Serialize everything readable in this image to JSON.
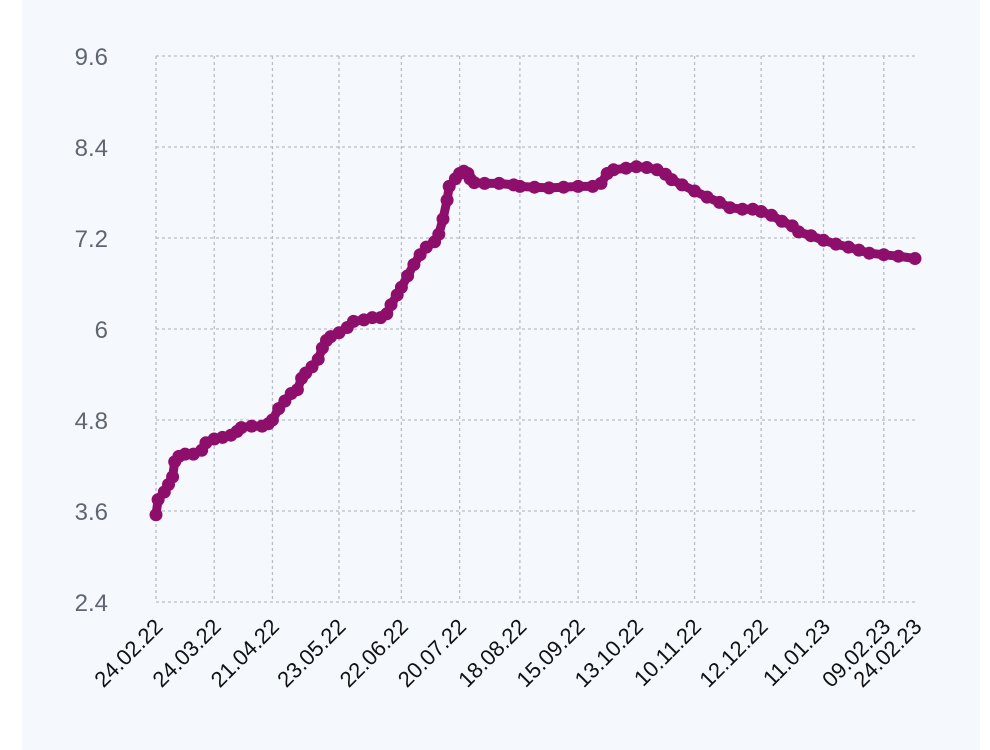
{
  "chart_data": {
    "type": "line",
    "title": "",
    "xlabel": "",
    "ylabel": "",
    "ylim": [
      2.4,
      9.6
    ],
    "y_ticks": [
      "2.4",
      "3.6",
      "4.8",
      "6",
      "7.2",
      "8.4",
      "9.6"
    ],
    "x_range": [
      "2022-02-24",
      "2023-02-24"
    ],
    "x_ticks": [
      {
        "date": "2022-02-24",
        "label": "24.02.22"
      },
      {
        "date": "2022-03-24",
        "label": "24.03.22"
      },
      {
        "date": "2022-04-21",
        "label": "21.04.22"
      },
      {
        "date": "2022-05-23",
        "label": "23.05.22"
      },
      {
        "date": "2022-06-22",
        "label": "22.06.22"
      },
      {
        "date": "2022-07-20",
        "label": "20.07.22"
      },
      {
        "date": "2022-08-18",
        "label": "18.08.22"
      },
      {
        "date": "2022-09-15",
        "label": "15.09.22"
      },
      {
        "date": "2022-10-13",
        "label": "13.10.22"
      },
      {
        "date": "2022-11-10",
        "label": "10.11.22"
      },
      {
        "date": "2022-12-12",
        "label": "12.12.22"
      },
      {
        "date": "2023-01-11",
        "label": "11.01.23"
      },
      {
        "date": "2023-02-09",
        "label": "09.02.23"
      },
      {
        "date": "2023-02-24",
        "label": "24.02.23"
      }
    ],
    "grid": true,
    "series": [
      {
        "color": "#8e0f6b",
        "points": [
          [
            "2022-02-24",
            3.55
          ],
          [
            "2022-02-25",
            3.75
          ],
          [
            "2022-02-28",
            3.85
          ],
          [
            "2022-03-02",
            3.95
          ],
          [
            "2022-03-04",
            4.05
          ],
          [
            "2022-03-05",
            4.25
          ],
          [
            "2022-03-07",
            4.32
          ],
          [
            "2022-03-10",
            4.35
          ],
          [
            "2022-03-14",
            4.35
          ],
          [
            "2022-03-18",
            4.4
          ],
          [
            "2022-03-20",
            4.5
          ],
          [
            "2022-03-24",
            4.55
          ],
          [
            "2022-03-28",
            4.57
          ],
          [
            "2022-04-01",
            4.6
          ],
          [
            "2022-04-04",
            4.65
          ],
          [
            "2022-04-06",
            4.7
          ],
          [
            "2022-04-11",
            4.72
          ],
          [
            "2022-04-16",
            4.72
          ],
          [
            "2022-04-19",
            4.75
          ],
          [
            "2022-04-21",
            4.8
          ],
          [
            "2022-04-24",
            4.95
          ],
          [
            "2022-04-27",
            5.05
          ],
          [
            "2022-04-30",
            5.15
          ],
          [
            "2022-05-03",
            5.2
          ],
          [
            "2022-05-05",
            5.35
          ],
          [
            "2022-05-07",
            5.42
          ],
          [
            "2022-05-10",
            5.5
          ],
          [
            "2022-05-13",
            5.6
          ],
          [
            "2022-05-15",
            5.75
          ],
          [
            "2022-05-17",
            5.85
          ],
          [
            "2022-05-19",
            5.9
          ],
          [
            "2022-05-23",
            5.95
          ],
          [
            "2022-05-27",
            6.02
          ],
          [
            "2022-05-30",
            6.1
          ],
          [
            "2022-06-04",
            6.12
          ],
          [
            "2022-06-08",
            6.15
          ],
          [
            "2022-06-12",
            6.15
          ],
          [
            "2022-06-15",
            6.2
          ],
          [
            "2022-06-17",
            6.32
          ],
          [
            "2022-06-20",
            6.45
          ],
          [
            "2022-06-22",
            6.55
          ],
          [
            "2022-06-25",
            6.7
          ],
          [
            "2022-06-28",
            6.85
          ],
          [
            "2022-07-01",
            6.98
          ],
          [
            "2022-07-04",
            7.08
          ],
          [
            "2022-07-08",
            7.15
          ],
          [
            "2022-07-10",
            7.25
          ],
          [
            "2022-07-12",
            7.45
          ],
          [
            "2022-07-14",
            7.7
          ],
          [
            "2022-07-15",
            7.88
          ],
          [
            "2022-07-18",
            7.98
          ],
          [
            "2022-07-20",
            8.05
          ],
          [
            "2022-07-22",
            8.08
          ],
          [
            "2022-07-24",
            8.05
          ],
          [
            "2022-07-25",
            7.98
          ],
          [
            "2022-07-27",
            7.93
          ],
          [
            "2022-08-01",
            7.92
          ],
          [
            "2022-08-08",
            7.92
          ],
          [
            "2022-08-15",
            7.9
          ],
          [
            "2022-08-18",
            7.88
          ],
          [
            "2022-08-25",
            7.87
          ],
          [
            "2022-09-01",
            7.86
          ],
          [
            "2022-09-08",
            7.87
          ],
          [
            "2022-09-15",
            7.88
          ],
          [
            "2022-09-22",
            7.88
          ],
          [
            "2022-09-26",
            7.92
          ],
          [
            "2022-09-29",
            8.05
          ],
          [
            "2022-10-02",
            8.1
          ],
          [
            "2022-10-08",
            8.12
          ],
          [
            "2022-10-13",
            8.14
          ],
          [
            "2022-10-18",
            8.13
          ],
          [
            "2022-10-23",
            8.1
          ],
          [
            "2022-10-27",
            8.04
          ],
          [
            "2022-10-30",
            7.97
          ],
          [
            "2022-11-04",
            7.9
          ],
          [
            "2022-11-10",
            7.82
          ],
          [
            "2022-11-16",
            7.74
          ],
          [
            "2022-11-22",
            7.67
          ],
          [
            "2022-11-27",
            7.6
          ],
          [
            "2022-12-03",
            7.58
          ],
          [
            "2022-12-08",
            7.58
          ],
          [
            "2022-12-12",
            7.55
          ],
          [
            "2022-12-17",
            7.5
          ],
          [
            "2022-12-22",
            7.42
          ],
          [
            "2022-12-27",
            7.36
          ],
          [
            "2022-12-30",
            7.28
          ],
          [
            "2023-01-05",
            7.23
          ],
          [
            "2023-01-11",
            7.17
          ],
          [
            "2023-01-17",
            7.12
          ],
          [
            "2023-01-23",
            7.08
          ],
          [
            "2023-01-28",
            7.04
          ],
          [
            "2023-02-02",
            7.0
          ],
          [
            "2023-02-09",
            6.98
          ],
          [
            "2023-02-16",
            6.96
          ],
          [
            "2023-02-24",
            6.93
          ]
        ]
      }
    ]
  }
}
